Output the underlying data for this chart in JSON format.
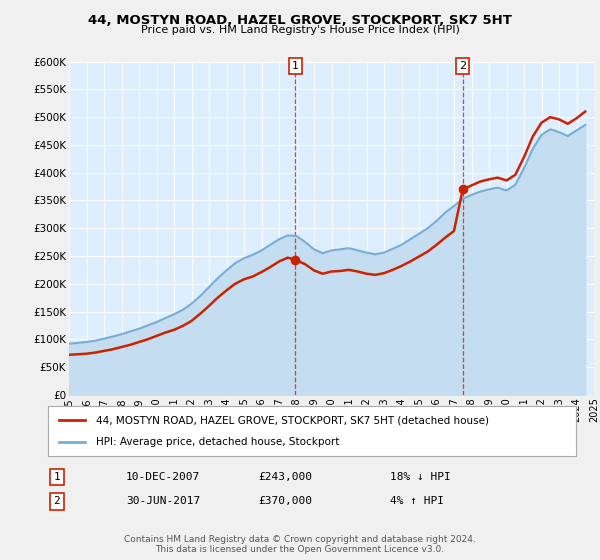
{
  "title": "44, MOSTYN ROAD, HAZEL GROVE, STOCKPORT, SK7 5HT",
  "subtitle": "Price paid vs. HM Land Registry's House Price Index (HPI)",
  "hpi_color": "#7aadd4",
  "hpi_fill_color": "#c5ddf0",
  "price_color": "#cc2200",
  "marker_color": "#cc2200",
  "background_color": "#f0f0f0",
  "plot_bg_color": "#ddeeff",
  "ylim": [
    0,
    600000
  ],
  "yticks": [
    0,
    50000,
    100000,
    150000,
    200000,
    250000,
    300000,
    350000,
    400000,
    450000,
    500000,
    550000,
    600000
  ],
  "ytick_labels": [
    "£0",
    "£50K",
    "£100K",
    "£150K",
    "£200K",
    "£250K",
    "£300K",
    "£350K",
    "£400K",
    "£450K",
    "£500K",
    "£550K",
    "£600K"
  ],
  "xmin": 1995,
  "xmax": 2025,
  "sale1_date": "10-DEC-2007",
  "sale1_price": 243000,
  "sale1_hpi_txt": "18% ↓ HPI",
  "sale1_x": 2007.94,
  "sale1_y": 243000,
  "sale2_date": "30-JUN-2017",
  "sale2_price": 370000,
  "sale2_hpi_txt": "4% ↑ HPI",
  "sale2_x": 2017.5,
  "sale2_y": 370000,
  "legend_line1": "44, MOSTYN ROAD, HAZEL GROVE, STOCKPORT, SK7 5HT (detached house)",
  "legend_line2": "HPI: Average price, detached house, Stockport",
  "footer": "Contains HM Land Registry data © Crown copyright and database right 2024.\nThis data is licensed under the Open Government Licence v3.0.",
  "years_hpi": [
    1995.0,
    1995.5,
    1996.0,
    1996.5,
    1997.0,
    1997.5,
    1998.0,
    1998.5,
    1999.0,
    1999.5,
    2000.0,
    2000.5,
    2001.0,
    2001.5,
    2002.0,
    2002.5,
    2003.0,
    2003.5,
    2004.0,
    2004.5,
    2005.0,
    2005.5,
    2006.0,
    2006.5,
    2007.0,
    2007.5,
    2008.0,
    2008.5,
    2009.0,
    2009.5,
    2010.0,
    2010.5,
    2011.0,
    2011.5,
    2012.0,
    2012.5,
    2013.0,
    2013.5,
    2014.0,
    2014.5,
    2015.0,
    2015.5,
    2016.0,
    2016.5,
    2017.0,
    2017.5,
    2018.0,
    2018.5,
    2019.0,
    2019.5,
    2020.0,
    2020.5,
    2021.0,
    2021.5,
    2022.0,
    2022.5,
    2023.0,
    2023.5,
    2024.0,
    2024.5
  ],
  "hpi_values": [
    92000,
    93500,
    95000,
    97500,
    101000,
    105000,
    109000,
    114000,
    119000,
    125000,
    131000,
    138000,
    145000,
    153000,
    164000,
    178000,
    194000,
    210000,
    224000,
    237000,
    246000,
    252000,
    260000,
    270000,
    280000,
    287000,
    286000,
    275000,
    262000,
    255000,
    260000,
    262000,
    264000,
    260000,
    256000,
    253000,
    256000,
    263000,
    270000,
    280000,
    290000,
    300000,
    313000,
    328000,
    340000,
    353000,
    360000,
    366000,
    370000,
    373000,
    368000,
    378000,
    408000,
    443000,
    468000,
    478000,
    473000,
    466000,
    476000,
    486000
  ],
  "years_price": [
    1995.0,
    1995.5,
    1996.0,
    1996.5,
    1997.0,
    1997.5,
    1998.0,
    1998.5,
    1999.0,
    1999.5,
    2000.0,
    2000.5,
    2001.0,
    2001.5,
    2002.0,
    2002.5,
    2003.0,
    2003.5,
    2004.0,
    2004.5,
    2005.0,
    2005.5,
    2006.0,
    2006.5,
    2007.0,
    2007.5,
    2007.94,
    2008.5,
    2009.0,
    2009.5,
    2010.0,
    2010.5,
    2011.0,
    2011.5,
    2012.0,
    2012.5,
    2013.0,
    2013.5,
    2014.0,
    2014.5,
    2015.0,
    2015.5,
    2016.0,
    2016.5,
    2017.0,
    2017.5,
    2018.0,
    2018.5,
    2019.0,
    2019.5,
    2020.0,
    2020.5,
    2021.0,
    2021.5,
    2022.0,
    2022.5,
    2023.0,
    2023.5,
    2024.0,
    2024.5
  ],
  "price_values": [
    72000,
    73000,
    74000,
    76000,
    79000,
    82000,
    86000,
    90000,
    95000,
    100000,
    106000,
    112000,
    117000,
    124000,
    133000,
    146000,
    160000,
    175000,
    188000,
    200000,
    208000,
    213000,
    221000,
    230000,
    240000,
    247000,
    243000,
    235000,
    224000,
    218000,
    222000,
    223000,
    225000,
    222000,
    218000,
    216000,
    219000,
    225000,
    232000,
    240000,
    249000,
    258000,
    270000,
    283000,
    295000,
    370000,
    377000,
    384000,
    388000,
    391000,
    386000,
    396000,
    428000,
    465000,
    490000,
    500000,
    496000,
    488000,
    498000,
    510000
  ]
}
